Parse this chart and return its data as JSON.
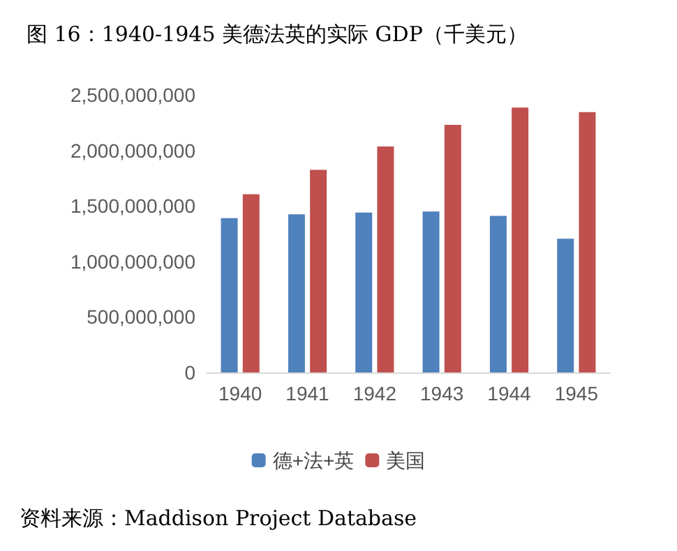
{
  "chart_data": {
    "type": "bar",
    "title": "图 16：1940-1945 美德法英的实际 GDP（千美元）",
    "categories": [
      "1940",
      "1941",
      "1942",
      "1943",
      "1944",
      "1945"
    ],
    "series": [
      {
        "name": "德+法+英",
        "color": "#4f81bd",
        "values": [
          1390000000,
          1425000000,
          1440000000,
          1450000000,
          1410000000,
          1205000000
        ]
      },
      {
        "name": "美国",
        "color": "#c0504d",
        "values": [
          1605000000,
          1825000000,
          2035000000,
          2230000000,
          2385000000,
          2345000000
        ]
      }
    ],
    "ylim": [
      0,
      2500000000
    ],
    "yticks": [
      0,
      {
        "value": 500000000,
        "label": "500,000,000"
      },
      {
        "value": 1000000000,
        "label": "1,000,000,000"
      },
      {
        "value": 1500000000,
        "label": "1,500,000,000"
      },
      {
        "value": 2000000000,
        "label": "2,000,000,000"
      },
      {
        "value": 2500000000,
        "label": "2,500,000,000"
      }
    ],
    "grid": false,
    "legend": "bottom",
    "annotations": [
      "资料来源：Maddison Project Database"
    ]
  }
}
